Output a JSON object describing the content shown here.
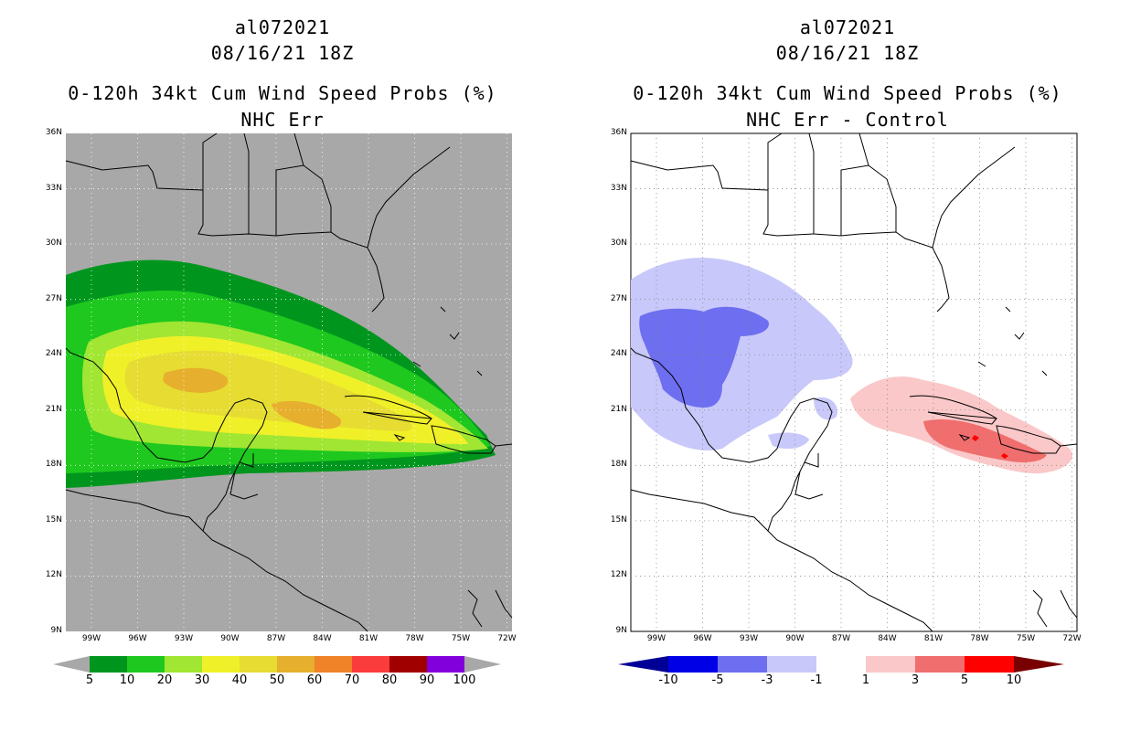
{
  "left": {
    "title": {
      "storm_id": "al072021",
      "datetime": "08/16/21 18Z",
      "product": "0-120h 34kt Cum Wind Speed Probs (%)",
      "subtitle": "NHC Err"
    },
    "map": {
      "lat_labels": [
        "36N",
        "33N",
        "30N",
        "27N",
        "24N",
        "21N",
        "18N",
        "15N",
        "12N",
        "9N"
      ],
      "lon_labels": [
        "99W",
        "96W",
        "93W",
        "90W",
        "87W",
        "84W",
        "81W",
        "78W",
        "75W",
        "72W"
      ],
      "background": "#a8a8a8"
    },
    "colorbar": {
      "labels": [
        "5",
        "10",
        "20",
        "30",
        "40",
        "50",
        "60",
        "70",
        "80",
        "90",
        "100"
      ],
      "colors": [
        "#00961e",
        "#1ec81e",
        "#a0e632",
        "#f0f028",
        "#e6dc32",
        "#e6af2d",
        "#f08228",
        "#fa3c3c",
        "#a00000",
        "#8200dc"
      ],
      "end_color": "#a8a8a8"
    }
  },
  "right": {
    "title": {
      "storm_id": "al072021",
      "datetime": "08/16/21 18Z",
      "product": "0-120h 34kt Cum Wind Speed Probs (%)",
      "subtitle": "NHC Err - Control"
    },
    "map": {
      "lat_labels": [
        "36N",
        "33N",
        "30N",
        "27N",
        "24N",
        "21N",
        "18N",
        "15N",
        "12N",
        "9N"
      ],
      "lon_labels": [
        "99W",
        "96W",
        "93W",
        "90W",
        "87W",
        "84W",
        "81W",
        "78W",
        "75W",
        "72W"
      ],
      "background": "#ffffff"
    },
    "colorbar": {
      "labels": [
        "-10",
        "-5",
        "-3",
        "-1",
        "1",
        "3",
        "5",
        "10"
      ],
      "colors": [
        "#0000e6",
        "#6e6ef0",
        "#c8c8fa",
        "#ffffff",
        "#fac8c8",
        "#f06e6e",
        "#ff0000"
      ],
      "low_color": "#000096",
      "high_color": "#780000"
    }
  }
}
